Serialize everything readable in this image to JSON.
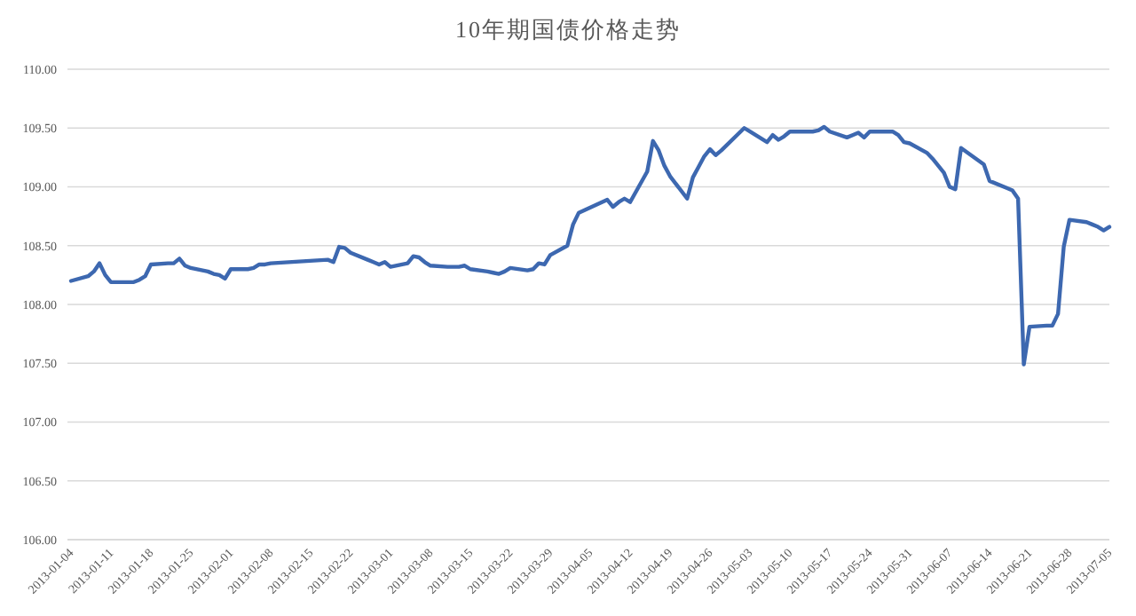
{
  "chart_data": {
    "type": "line",
    "title": "10年期国债价格走势",
    "x": [
      "2013-01-04",
      "2013-01-07",
      "2013-01-08",
      "2013-01-09",
      "2013-01-10",
      "2013-01-11",
      "2013-01-14",
      "2013-01-15",
      "2013-01-16",
      "2013-01-17",
      "2013-01-18",
      "2013-01-21",
      "2013-01-22",
      "2013-01-23",
      "2013-01-24",
      "2013-01-25",
      "2013-01-28",
      "2013-01-29",
      "2013-01-30",
      "2013-01-31",
      "2013-02-01",
      "2013-02-04",
      "2013-02-05",
      "2013-02-06",
      "2013-02-07",
      "2013-02-08",
      "2013-02-18",
      "2013-02-19",
      "2013-02-20",
      "2013-02-21",
      "2013-02-22",
      "2013-02-25",
      "2013-02-26",
      "2013-02-27",
      "2013-02-28",
      "2013-03-01",
      "2013-03-04",
      "2013-03-05",
      "2013-03-06",
      "2013-03-07",
      "2013-03-08",
      "2013-03-11",
      "2013-03-12",
      "2013-03-13",
      "2013-03-14",
      "2013-03-15",
      "2013-03-18",
      "2013-03-19",
      "2013-03-20",
      "2013-03-21",
      "2013-03-22",
      "2013-03-25",
      "2013-03-26",
      "2013-03-27",
      "2013-03-28",
      "2013-03-29",
      "2013-04-01",
      "2013-04-02",
      "2013-04-03",
      "2013-04-08",
      "2013-04-09",
      "2013-04-10",
      "2013-04-11",
      "2013-04-12",
      "2013-04-15",
      "2013-04-16",
      "2013-04-17",
      "2013-04-18",
      "2013-04-19",
      "2013-04-22",
      "2013-04-23",
      "2013-04-24",
      "2013-04-25",
      "2013-04-26",
      "2013-04-27",
      "2013-04-28",
      "2013-05-02",
      "2013-05-03",
      "2013-05-06",
      "2013-05-07",
      "2013-05-08",
      "2013-05-09",
      "2013-05-10",
      "2013-05-13",
      "2013-05-14",
      "2013-05-15",
      "2013-05-16",
      "2013-05-17",
      "2013-05-20",
      "2013-05-21",
      "2013-05-22",
      "2013-05-23",
      "2013-05-24",
      "2013-05-27",
      "2013-05-28",
      "2013-05-29",
      "2013-05-30",
      "2013-05-31",
      "2013-06-03",
      "2013-06-04",
      "2013-06-05",
      "2013-06-06",
      "2013-06-07",
      "2013-06-08",
      "2013-06-09",
      "2013-06-13",
      "2013-06-14",
      "2013-06-17",
      "2013-06-18",
      "2013-06-19",
      "2013-06-20",
      "2013-06-21",
      "2013-06-24",
      "2013-06-25",
      "2013-06-26",
      "2013-06-27",
      "2013-06-28",
      "2013-07-01",
      "2013-07-02",
      "2013-07-03",
      "2013-07-04",
      "2013-07-05"
    ],
    "series": [
      {
        "color": "#3d68b0",
        "values": [
          108.2,
          108.24,
          108.28,
          108.35,
          108.25,
          108.19,
          108.19,
          108.19,
          108.21,
          108.24,
          108.34,
          108.35,
          108.35,
          108.39,
          108.33,
          108.31,
          108.28,
          108.26,
          108.25,
          108.22,
          108.3,
          108.3,
          108.31,
          108.34,
          108.34,
          108.35,
          108.38,
          108.36,
          108.49,
          108.48,
          108.44,
          108.38,
          108.36,
          108.34,
          108.36,
          108.32,
          108.35,
          108.41,
          108.4,
          108.36,
          108.33,
          108.32,
          108.32,
          108.32,
          108.33,
          108.3,
          108.28,
          108.27,
          108.26,
          108.28,
          108.31,
          108.29,
          108.3,
          108.35,
          108.34,
          108.42,
          108.5,
          108.68,
          108.78,
          108.89,
          108.83,
          108.87,
          108.9,
          108.87,
          109.13,
          109.39,
          109.31,
          109.18,
          109.09,
          108.9,
          109.08,
          109.17,
          109.26,
          109.32,
          109.27,
          109.31,
          109.5,
          109.47,
          109.38,
          109.44,
          109.4,
          109.43,
          109.47,
          109.47,
          109.47,
          109.48,
          109.51,
          109.47,
          109.42,
          109.44,
          109.46,
          109.42,
          109.47,
          109.47,
          109.47,
          109.44,
          109.38,
          109.37,
          109.29,
          109.24,
          109.18,
          109.12,
          109.0,
          108.98,
          109.33,
          109.19,
          109.05,
          108.99,
          108.97,
          108.9,
          107.49,
          107.81,
          107.82,
          107.82,
          107.92,
          108.49,
          108.72,
          108.7,
          108.68,
          108.66,
          108.63,
          108.66
        ]
      }
    ],
    "xlim": [
      "2013-01-04",
      "2013-07-05"
    ],
    "xticks": [
      "2013-01-04",
      "2013-01-11",
      "2013-01-18",
      "2013-01-25",
      "2013-02-01",
      "2013-02-08",
      "2013-02-15",
      "2013-02-22",
      "2013-03-01",
      "2013-03-08",
      "2013-03-15",
      "2013-03-22",
      "2013-03-29",
      "2013-04-05",
      "2013-04-12",
      "2013-04-19",
      "2013-04-26",
      "2013-05-03",
      "2013-05-10",
      "2013-05-17",
      "2013-05-24",
      "2013-05-31",
      "2013-06-07",
      "2013-06-14",
      "2013-06-21",
      "2013-06-28",
      "2013-07-05"
    ],
    "ylim": [
      106,
      110
    ],
    "yticks": [
      {
        "value": 106,
        "label": "106.00"
      },
      {
        "value": 106.5,
        "label": "106.50"
      },
      {
        "value": 107,
        "label": "107.00"
      },
      {
        "value": 107.5,
        "label": "107.50"
      },
      {
        "value": 108,
        "label": "108.00"
      },
      {
        "value": 108.5,
        "label": "108.50"
      },
      {
        "value": 109,
        "label": "109.00"
      },
      {
        "value": 109.5,
        "label": "109.50"
      },
      {
        "value": 110,
        "label": "110.00"
      }
    ],
    "grid": "y",
    "marker": "none",
    "line_style": "solid"
  }
}
